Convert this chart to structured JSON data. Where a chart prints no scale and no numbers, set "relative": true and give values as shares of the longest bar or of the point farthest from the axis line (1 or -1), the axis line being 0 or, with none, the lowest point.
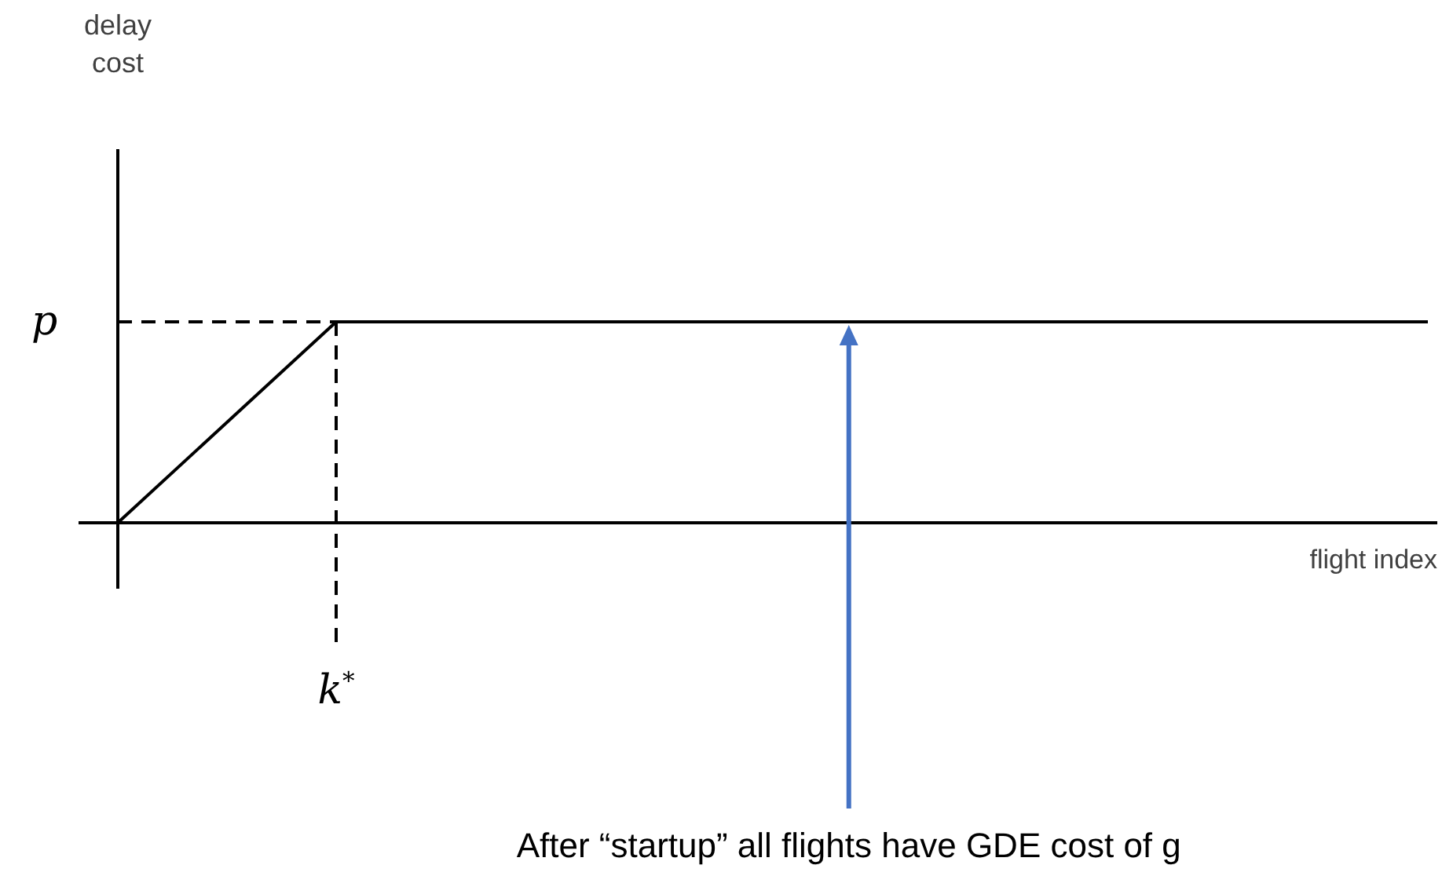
{
  "chart_data": {
    "type": "line",
    "relative": true,
    "xlabel": "flight index",
    "categories": [
      null,
      null,
      null,
      null,
      null,
      null,
      null
    ],
    "series": [
      {
        "color": "#000000",
        "values": [
          0,
          1,
          1,
          1,
          1,
          1,
          1
        ]
      }
    ],
    "ref_lines": [
      {
        "axis": "y",
        "value": 1,
        "label": "p",
        "line_style": "dashed",
        "color": "#000000"
      }
    ],
    "annotations": [
      "delay cost",
      "k$^{*}$",
      "After “startup” all flights have GDE cost of g"
    ],
    "marker": "none",
    "line_style": "solid"
  }
}
